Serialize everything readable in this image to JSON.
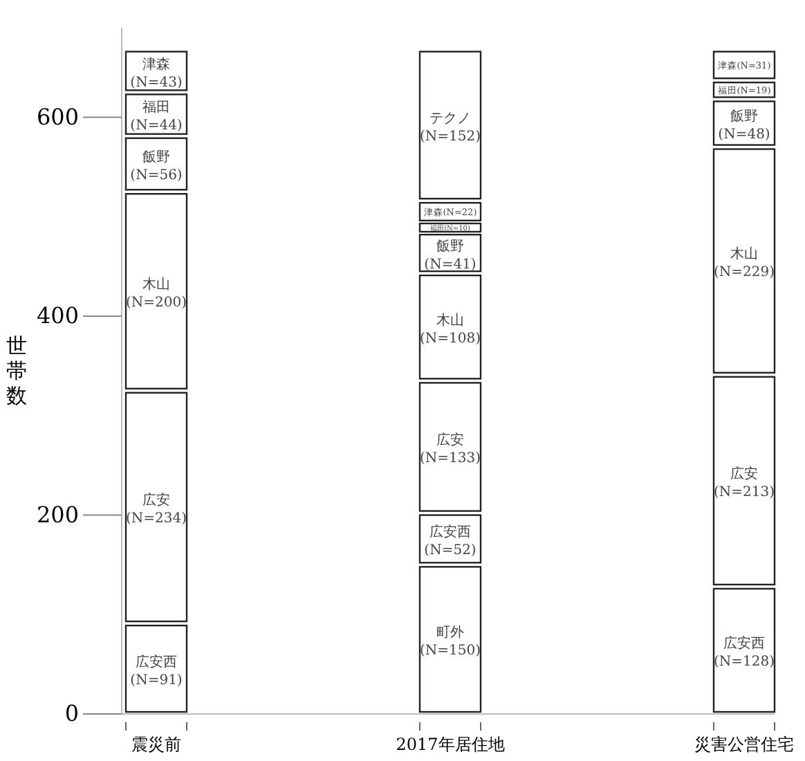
{
  "chart_data": {
    "type": "bar",
    "stacked": true,
    "ylabel": "世帯数",
    "categories": [
      "震災前",
      "2017年居住地",
      "災害公営住宅"
    ],
    "ylim": [
      0,
      690
    ],
    "yticks": [
      0,
      200,
      400,
      600
    ],
    "series": [
      {
        "name": "町外",
        "color": "#ffffff",
        "values": [
          null,
          150,
          null
        ],
        "value_labels": [
          null,
          "(N=150)",
          null
        ]
      },
      {
        "name": "広安西",
        "color": "#ffffff",
        "values": [
          91,
          52,
          128
        ],
        "value_labels": [
          "(N=91)",
          "(N=52)",
          "(N=128)"
        ]
      },
      {
        "name": "広安",
        "color": "#ffffff",
        "values": [
          234,
          133,
          213
        ],
        "value_labels": [
          "(N=234)",
          "(N=133)",
          "(N=213)"
        ]
      },
      {
        "name": "木山",
        "color": "#ffffff",
        "values": [
          200,
          108,
          229
        ],
        "value_labels": [
          "(N=200)",
          "(N=108)",
          "(N=229)"
        ]
      },
      {
        "name": "飯野",
        "color": "#ffffff",
        "values": [
          56,
          41,
          48
        ],
        "value_labels": [
          "(N=56)",
          "(N=41)",
          "(N=48)"
        ]
      },
      {
        "name": "福田",
        "color": "#ffffff",
        "values": [
          44,
          10,
          19
        ],
        "value_labels": [
          "(N=44)",
          "(N=10)",
          "(N=19)"
        ]
      },
      {
        "name": "津森",
        "color": "#ffffff",
        "values": [
          43,
          22,
          31
        ],
        "value_labels": [
          "(N=43)",
          "(N=22)",
          "(N=31)"
        ]
      },
      {
        "name": "テクノ",
        "color": "#ffffff",
        "values": [
          null,
          152,
          null
        ],
        "value_labels": [
          null,
          "(N=152)",
          null
        ]
      }
    ]
  }
}
